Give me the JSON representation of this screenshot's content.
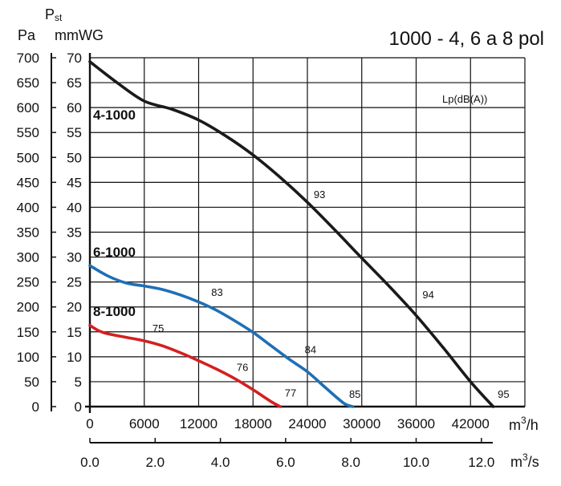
{
  "chart_data": {
    "type": "line",
    "title": "1000 - 4, 6 a 8 pol",
    "ylabel": "Pst",
    "y_units": {
      "pa": "Pa",
      "mmwg": "mmWG"
    },
    "x_units": {
      "m3h_base": "m",
      "m3h_sup": "3",
      "m3h_tail": "/h",
      "m3s_base": "m",
      "m3s_sup": "3",
      "m3s_tail": "/s"
    },
    "legend_title": "Lp(dB(A))",
    "xlim": [
      0,
      48000
    ],
    "ylim_pa": [
      0,
      700
    ],
    "x_ticks_m3h": [
      "0",
      "6000",
      "12000",
      "18000",
      "24000",
      "30000",
      "36000",
      "42000"
    ],
    "x_ticks_m3s": [
      "0.0",
      "2.0",
      "4.0",
      "6.0",
      "8.0",
      "10.0",
      "12.0"
    ],
    "y_ticks_pa": [
      "0",
      "50",
      "100",
      "150",
      "200",
      "250",
      "300",
      "350",
      "400",
      "450",
      "500",
      "550",
      "600",
      "650",
      "700"
    ],
    "y_ticks_mmwg": [
      "0",
      "5",
      "10",
      "15",
      "20",
      "25",
      "30",
      "35",
      "40",
      "45",
      "50",
      "55",
      "60",
      "65",
      "70"
    ],
    "series": [
      {
        "name": "4-1000",
        "color": "#1a1a1a",
        "x": [
          0,
          3000,
          6000,
          9000,
          12000,
          15000,
          18000,
          21000,
          24000,
          27000,
          30000,
          33000,
          36000,
          39000,
          42000,
          44500
        ],
        "y": [
          692,
          650,
          613,
          597,
          575,
          543,
          505,
          460,
          410,
          355,
          298,
          242,
          183,
          118,
          50,
          0
        ],
        "db_labels": [
          {
            "text": "93",
            "x": 24700,
            "y": 418
          },
          {
            "text": "94",
            "x": 36700,
            "y": 217
          },
          {
            "text": "95",
            "x": 45000,
            "y": 18
          }
        ]
      },
      {
        "name": "6-1000",
        "color": "#1f6fb5",
        "x": [
          0,
          2000,
          4000,
          6000,
          8000,
          10000,
          12000,
          14000,
          16000,
          18000,
          20000,
          22000,
          24000,
          26000,
          28000,
          29000
        ],
        "y": [
          283,
          262,
          248,
          242,
          235,
          224,
          210,
          193,
          172,
          149,
          122,
          95,
          70,
          38,
          7,
          0
        ],
        "db_labels": [
          {
            "text": "83",
            "x": 13400,
            "y": 222
          },
          {
            "text": "84",
            "x": 23700,
            "y": 107
          },
          {
            "text": "85",
            "x": 28600,
            "y": 18
          }
        ]
      },
      {
        "name": "8-1000",
        "color": "#d42020",
        "x": [
          0,
          1000,
          2000,
          4000,
          6000,
          8000,
          10000,
          12000,
          14000,
          16000,
          18000,
          19000,
          20000,
          21000
        ],
        "y": [
          163,
          152,
          146,
          139,
          132,
          122,
          108,
          92,
          75,
          56,
          34,
          22,
          10,
          0
        ],
        "db_labels": [
          {
            "text": "75",
            "x": 6900,
            "y": 150
          },
          {
            "text": "76",
            "x": 16200,
            "y": 72
          },
          {
            "text": "77",
            "x": 21500,
            "y": 20
          }
        ]
      }
    ]
  }
}
